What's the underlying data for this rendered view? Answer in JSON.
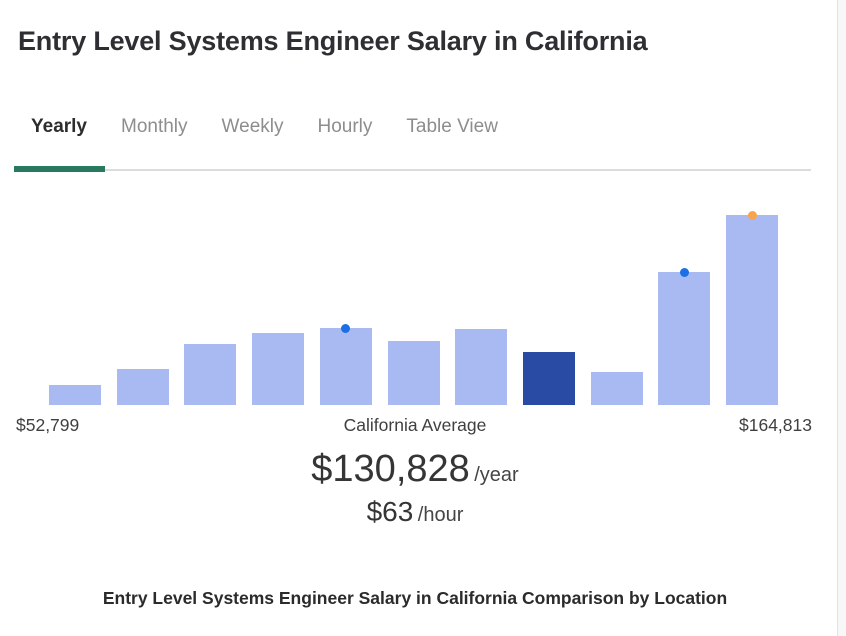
{
  "page": {
    "title": "Entry Level Systems Engineer Salary in California",
    "comparison_heading": "Entry Level Systems Engineer Salary in California Comparison by Location"
  },
  "tabs": {
    "active_color": "#28795F",
    "items": [
      {
        "label": "Yearly",
        "active": true
      },
      {
        "label": "Monthly",
        "active": false
      },
      {
        "label": "Weekly",
        "active": false
      },
      {
        "label": "Hourly",
        "active": false
      },
      {
        "label": "Table View",
        "active": false
      }
    ]
  },
  "chart_data": {
    "type": "bar",
    "title": "Entry Level Systems Engineer Salary in California",
    "xlabel": "",
    "ylabel": "",
    "min_label": "$52,799",
    "center_label": "California Average",
    "max_label": "$164,813",
    "bars": [
      {
        "relative_height": 20
      },
      {
        "relative_height": 36
      },
      {
        "relative_height": 61
      },
      {
        "relative_height": 72
      },
      {
        "relative_height": 77,
        "marker": "blue"
      },
      {
        "relative_height": 64
      },
      {
        "relative_height": 76
      },
      {
        "relative_height": 53,
        "highlight": true
      },
      {
        "relative_height": 33
      },
      {
        "relative_height": 133,
        "marker": "blue"
      },
      {
        "relative_height": 190,
        "marker": "orange"
      }
    ],
    "colors": {
      "bar": "#A9B9F2",
      "highlight_bar": "#2A4BA4",
      "marker_blue": "#1A70E4",
      "marker_orange": "#F7A54C"
    }
  },
  "average": {
    "yearly_value": "$130,828",
    "yearly_unit": "/year",
    "hourly_value": "$63",
    "hourly_unit": "/hour"
  }
}
